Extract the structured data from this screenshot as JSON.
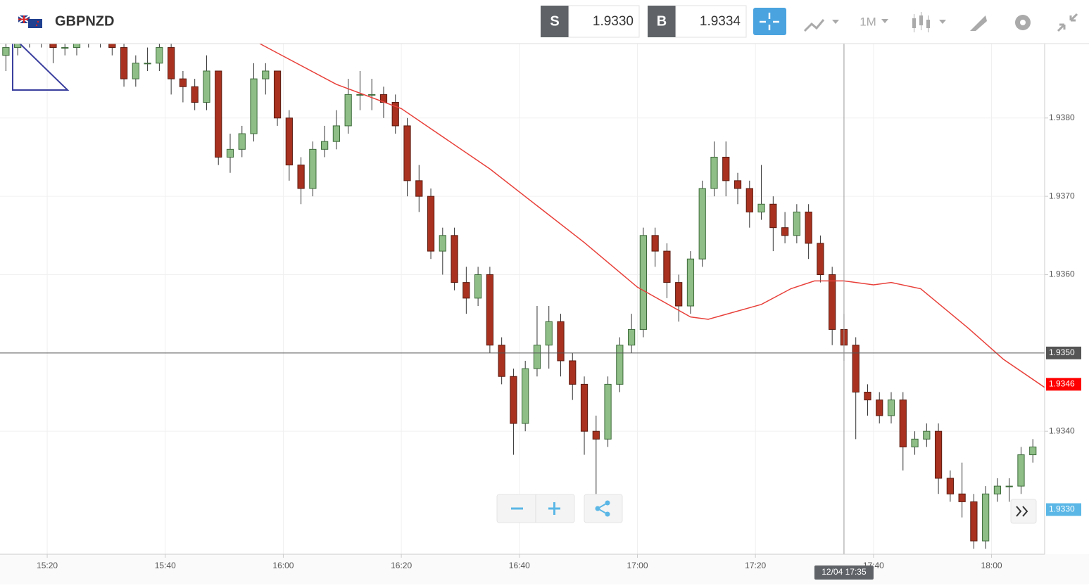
{
  "header": {
    "symbol": "GBPNZD",
    "sell_label": "S",
    "sell": "1.9330",
    "buy_label": "B",
    "buy": "1.9334",
    "timeframe": "1M"
  },
  "chart_data": {
    "type": "candlestick",
    "x": [
      "15:13",
      "15:15",
      "15:17",
      "15:19",
      "15:21",
      "15:23",
      "15:25",
      "15:27",
      "15:29",
      "15:31",
      "15:33",
      "15:35",
      "15:37",
      "15:39",
      "15:41",
      "15:43",
      "15:45",
      "15:47",
      "15:49",
      "15:51",
      "15:53",
      "15:55",
      "15:57",
      "15:59",
      "16:01",
      "16:03",
      "16:05",
      "16:07",
      "16:09",
      "16:11",
      "16:13",
      "16:15",
      "16:17",
      "16:19",
      "16:21",
      "16:23",
      "16:25",
      "16:27",
      "16:29",
      "16:31",
      "16:33",
      "16:35",
      "16:37",
      "16:39",
      "16:41",
      "16:43",
      "16:45",
      "16:47",
      "16:49",
      "16:51",
      "16:53",
      "16:55",
      "16:57",
      "16:59",
      "17:01",
      "17:03",
      "17:05",
      "17:07",
      "17:09",
      "17:11",
      "17:13",
      "17:15",
      "17:17",
      "17:19",
      "17:21",
      "17:23",
      "17:25",
      "17:27",
      "17:29",
      "17:31",
      "17:33",
      "17:35",
      "17:37",
      "17:39",
      "17:41",
      "17:43",
      "17:45",
      "17:47",
      "17:49",
      "17:51",
      "17:53",
      "17:55",
      "17:57",
      "17:59",
      "18:01",
      "18:03",
      "18:05",
      "18:07"
    ],
    "ohlc": [
      [
        1.9388,
        1.9391,
        1.9386,
        1.9389
      ],
      [
        1.9389,
        1.9392,
        1.9388,
        1.939
      ],
      [
        1.939,
        1.9391,
        1.9389,
        1.939
      ],
      [
        1.939,
        1.9392,
        1.9389,
        1.939
      ],
      [
        1.939,
        1.9391,
        1.9387,
        1.9389
      ],
      [
        1.9389,
        1.939,
        1.9388,
        1.9389
      ],
      [
        1.9389,
        1.9391,
        1.9388,
        1.939
      ],
      [
        1.939,
        1.9392,
        1.9389,
        1.939
      ],
      [
        1.939,
        1.9391,
        1.9389,
        1.939
      ],
      [
        1.939,
        1.9391,
        1.9388,
        1.9389
      ],
      [
        1.9389,
        1.939,
        1.9384,
        1.9385
      ],
      [
        1.9385,
        1.9388,
        1.9384,
        1.9387
      ],
      [
        1.9387,
        1.9389,
        1.9386,
        1.9387
      ],
      [
        1.9387,
        1.939,
        1.9386,
        1.9389
      ],
      [
        1.9389,
        1.939,
        1.9383,
        1.9385
      ],
      [
        1.9385,
        1.9386,
        1.9382,
        1.9384
      ],
      [
        1.9384,
        1.9385,
        1.9381,
        1.9382
      ],
      [
        1.9382,
        1.9388,
        1.9381,
        1.9386
      ],
      [
        1.9386,
        1.9386,
        1.9374,
        1.9375
      ],
      [
        1.9375,
        1.9378,
        1.9373,
        1.9376
      ],
      [
        1.9376,
        1.9379,
        1.9375,
        1.9378
      ],
      [
        1.9378,
        1.9387,
        1.9377,
        1.9385
      ],
      [
        1.9385,
        1.9387,
        1.9383,
        1.9386
      ],
      [
        1.9386,
        1.9386,
        1.9379,
        1.938
      ],
      [
        1.938,
        1.9381,
        1.9372,
        1.9374
      ],
      [
        1.9374,
        1.9375,
        1.9369,
        1.9371
      ],
      [
        1.9371,
        1.9377,
        1.937,
        1.9376
      ],
      [
        1.9376,
        1.9379,
        1.9375,
        1.9377
      ],
      [
        1.9377,
        1.9381,
        1.9376,
        1.9379
      ],
      [
        1.9379,
        1.9385,
        1.9378,
        1.9383
      ],
      [
        1.9383,
        1.9386,
        1.9381,
        1.9383
      ],
      [
        1.9383,
        1.9385,
        1.9381,
        1.9383
      ],
      [
        1.9383,
        1.9384,
        1.938,
        1.9382
      ],
      [
        1.9382,
        1.9383,
        1.9378,
        1.9379
      ],
      [
        1.9379,
        1.938,
        1.937,
        1.9372
      ],
      [
        1.9372,
        1.9374,
        1.9368,
        1.937
      ],
      [
        1.937,
        1.9371,
        1.9362,
        1.9363
      ],
      [
        1.9363,
        1.9366,
        1.936,
        1.9365
      ],
      [
        1.9365,
        1.9366,
        1.9358,
        1.9359
      ],
      [
        1.9359,
        1.9361,
        1.9355,
        1.9357
      ],
      [
        1.9357,
        1.9361,
        1.9356,
        1.936
      ],
      [
        1.936,
        1.9361,
        1.935,
        1.9351
      ],
      [
        1.9351,
        1.9352,
        1.9346,
        1.9347
      ],
      [
        1.9347,
        1.9348,
        1.9337,
        1.9341
      ],
      [
        1.9341,
        1.9349,
        1.934,
        1.9348
      ],
      [
        1.9348,
        1.9356,
        1.9347,
        1.9351
      ],
      [
        1.9351,
        1.9356,
        1.9348,
        1.9354
      ],
      [
        1.9354,
        1.9355,
        1.9347,
        1.9349
      ],
      [
        1.9349,
        1.935,
        1.9344,
        1.9346
      ],
      [
        1.9346,
        1.9347,
        1.9337,
        1.934
      ],
      [
        1.934,
        1.9342,
        1.9332,
        1.9339
      ],
      [
        1.9339,
        1.9347,
        1.9338,
        1.9346
      ],
      [
        1.9346,
        1.9352,
        1.9345,
        1.9351
      ],
      [
        1.9351,
        1.9355,
        1.935,
        1.9353
      ],
      [
        1.9353,
        1.9366,
        1.9352,
        1.9365
      ],
      [
        1.9365,
        1.9366,
        1.9361,
        1.9363
      ],
      [
        1.9363,
        1.9364,
        1.9357,
        1.9359
      ],
      [
        1.9359,
        1.936,
        1.9354,
        1.9356
      ],
      [
        1.9356,
        1.9363,
        1.9355,
        1.9362
      ],
      [
        1.9362,
        1.9372,
        1.9361,
        1.9371
      ],
      [
        1.9371,
        1.9377,
        1.937,
        1.9375
      ],
      [
        1.9375,
        1.9377,
        1.937,
        1.9372
      ],
      [
        1.9372,
        1.9373,
        1.9369,
        1.9371
      ],
      [
        1.9371,
        1.9372,
        1.9366,
        1.9368
      ],
      [
        1.9368,
        1.9374,
        1.9367,
        1.9369
      ],
      [
        1.9369,
        1.937,
        1.9363,
        1.9366
      ],
      [
        1.9366,
        1.9368,
        1.9364,
        1.9365
      ],
      [
        1.9365,
        1.9369,
        1.9364,
        1.9368
      ],
      [
        1.9368,
        1.9369,
        1.9362,
        1.9364
      ],
      [
        1.9364,
        1.9365,
        1.9359,
        1.936
      ],
      [
        1.936,
        1.9361,
        1.9351,
        1.9353
      ],
      [
        1.9353,
        1.9355,
        1.9349,
        1.9351
      ],
      [
        1.9351,
        1.9352,
        1.9339,
        1.9345
      ],
      [
        1.9345,
        1.9346,
        1.9342,
        1.9344
      ],
      [
        1.9344,
        1.9345,
        1.9341,
        1.9342
      ],
      [
        1.9342,
        1.9345,
        1.9341,
        1.9344
      ],
      [
        1.9344,
        1.9345,
        1.9335,
        1.9338
      ],
      [
        1.9338,
        1.934,
        1.9337,
        1.9339
      ],
      [
        1.9339,
        1.9341,
        1.9338,
        1.934
      ],
      [
        1.934,
        1.9341,
        1.9332,
        1.9334
      ],
      [
        1.9334,
        1.9335,
        1.9331,
        1.9332
      ],
      [
        1.9332,
        1.9336,
        1.9329,
        1.9331
      ],
      [
        1.9331,
        1.9332,
        1.9325,
        1.9326
      ],
      [
        1.9326,
        1.9333,
        1.9325,
        1.9332
      ],
      [
        1.9332,
        1.9334,
        1.9331,
        1.9333
      ],
      [
        1.9333,
        1.9334,
        1.9331,
        1.9333
      ],
      [
        1.9333,
        1.9338,
        1.9332,
        1.9337
      ],
      [
        1.9337,
        1.9339,
        1.9336,
        1.9338
      ]
    ],
    "up_color": "#8fbf87",
    "down_color": "#a8321f",
    "moving_average": {
      "color": "#e8403a",
      "x": [
        "15:56",
        "16:09",
        "16:20",
        "16:35",
        "16:51",
        "17:00",
        "17:09",
        "17:12",
        "17:21",
        "17:26",
        "17:30",
        "17:35",
        "17:40",
        "17:43",
        "17:48",
        "17:56",
        "18:02",
        "18:09"
      ],
      "values": [
        1.93895,
        1.93843,
        1.93812,
        1.93735,
        1.93641,
        1.93584,
        1.93546,
        1.93543,
        1.93562,
        1.93582,
        1.93592,
        1.93592,
        1.93587,
        1.9359,
        1.93582,
        1.93532,
        1.93492,
        1.93456
      ]
    },
    "xlim": [
      "15:12",
      "18:09"
    ],
    "xticks": [
      "15:20",
      "15:40",
      "16:00",
      "16:20",
      "16:40",
      "17:00",
      "17:20",
      "17:40",
      "18:00"
    ],
    "ylim": [
      1.93243,
      1.93895
    ],
    "yticks": [
      {
        "value": 1.938,
        "label": "1.9380"
      },
      {
        "value": 1.937,
        "label": "1.9370"
      },
      {
        "value": 1.936,
        "label": "1.9360"
      },
      {
        "value": 1.934,
        "label": "1.9340"
      }
    ],
    "price_lines": [
      {
        "value": 1.935,
        "label": "1.9350",
        "color": "#555555"
      },
      {
        "value": 1.9346,
        "label": "1.9346",
        "color": "#ff0000"
      },
      {
        "value": 1.933,
        "label": "1.9330",
        "color": "#5bb7e6"
      }
    ],
    "crosshair": {
      "x": "17:35",
      "label": "12/04 17:35"
    },
    "grid": true
  }
}
